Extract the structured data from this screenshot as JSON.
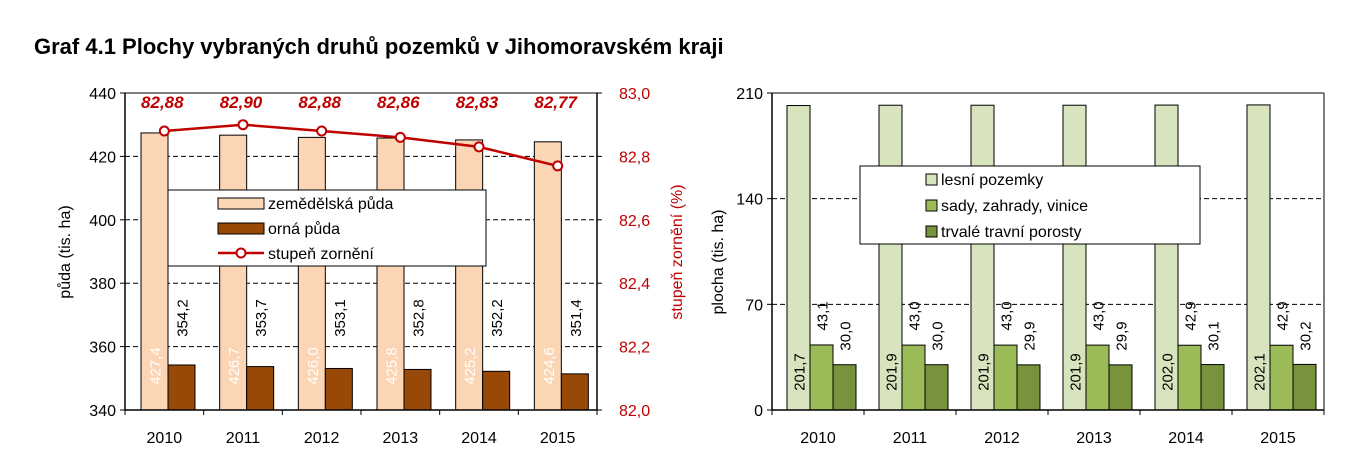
{
  "title": "Graf 4.1 Plochy vybraných druhů pozemků v Jihomoravském kraji",
  "chart_data": [
    {
      "type": "bar",
      "categories": [
        "2010",
        "2011",
        "2012",
        "2013",
        "2014",
        "2015"
      ],
      "ylabel": "půda (tis. ha)",
      "ylim": [
        340,
        440
      ],
      "yticks": [
        "340",
        "360",
        "380",
        "400",
        "420",
        "440"
      ],
      "y2label": "stupeň zornění (%)",
      "y2lim": [
        82.0,
        83.0
      ],
      "y2ticks": [
        "82,0",
        "82,2",
        "82,4",
        "82,6",
        "82,8",
        "83,0"
      ],
      "grid": "horizontal dashed",
      "legend_position": "center",
      "series": [
        {
          "name": "zemědělská půda",
          "type": "bar",
          "color": "#fcd5b5",
          "values": [
            427.4,
            426.7,
            426.0,
            425.8,
            425.2,
            424.6
          ],
          "labels": [
            "427,4",
            "426,7",
            "426,0",
            "425,8",
            "425,2",
            "424,6"
          ]
        },
        {
          "name": "orná půda",
          "type": "bar",
          "color": "#984807",
          "values": [
            354.2,
            353.7,
            353.1,
            352.8,
            352.2,
            351.4
          ],
          "labels": [
            "354,2",
            "353,7",
            "353,1",
            "352,8",
            "352,2",
            "351,4"
          ]
        },
        {
          "name": "stupeň zornění",
          "type": "line",
          "axis": "secondary",
          "color": "#c00000",
          "values": [
            82.88,
            82.9,
            82.88,
            82.86,
            82.83,
            82.77
          ],
          "labels": [
            "82,88",
            "82,90",
            "82,88",
            "82,86",
            "82,83",
            "82,77"
          ]
        }
      ]
    },
    {
      "type": "bar",
      "categories": [
        "2010",
        "2011",
        "2012",
        "2013",
        "2014",
        "2015"
      ],
      "ylabel": "plocha  (tis. ha)",
      "ylim": [
        0,
        210
      ],
      "yticks": [
        "0",
        "70",
        "140",
        "210"
      ],
      "grid": "horizontal dashed",
      "legend_position": "top-center",
      "series": [
        {
          "name": "lesní pozemky",
          "color": "#d7e4bd",
          "values": [
            201.7,
            201.9,
            201.9,
            201.9,
            202.0,
            202.1
          ],
          "labels": [
            "201,7",
            "201,9",
            "201,9",
            "201,9",
            "202,0",
            "202,1"
          ]
        },
        {
          "name": "sady, zahrady, vinice",
          "color": "#9bbb59",
          "values": [
            43.1,
            43.0,
            43.0,
            43.0,
            42.9,
            42.9
          ],
          "labels": [
            "43,1",
            "43,0",
            "43,0",
            "43,0",
            "42,9",
            "42,9"
          ]
        },
        {
          "name": "trvalé travní porosty",
          "color": "#77933c",
          "values": [
            30.0,
            30.0,
            29.9,
            29.9,
            30.1,
            30.2
          ],
          "labels": [
            "30,0",
            "30,0",
            "29,9",
            "29,9",
            "30,1",
            "30,2"
          ]
        }
      ]
    }
  ]
}
